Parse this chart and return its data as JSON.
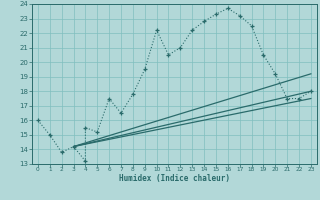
{
  "xlabel": "Humidex (Indice chaleur)",
  "bg_color": "#b2d8d8",
  "grid_color": "#80bfbf",
  "line_color": "#2a6b6b",
  "xlim": [
    -0.5,
    23.5
  ],
  "ylim": [
    13,
    24
  ],
  "xticks": [
    0,
    1,
    2,
    3,
    4,
    5,
    6,
    7,
    8,
    9,
    10,
    11,
    12,
    13,
    14,
    15,
    16,
    17,
    18,
    19,
    20,
    21,
    22,
    23
  ],
  "yticks": [
    13,
    14,
    15,
    16,
    17,
    18,
    19,
    20,
    21,
    22,
    23,
    24
  ],
  "main_series": {
    "x": [
      0,
      1,
      2,
      3,
      4,
      4,
      5,
      6,
      7,
      8,
      9,
      10,
      11,
      12,
      13,
      14,
      15,
      16,
      17,
      18,
      19,
      20,
      21,
      22,
      23
    ],
    "y": [
      16,
      15,
      13.8,
      14.2,
      13.2,
      15.5,
      15.2,
      17.5,
      16.5,
      17.8,
      19.5,
      22.2,
      20.5,
      21.0,
      22.2,
      22.8,
      23.3,
      23.7,
      23.2,
      22.5,
      20.5,
      19.2,
      17.5,
      17.5,
      18.0
    ]
  },
  "trend_lines": [
    {
      "x": [
        3,
        23
      ],
      "y": [
        14.2,
        19.2
      ]
    },
    {
      "x": [
        3,
        23
      ],
      "y": [
        14.2,
        18.0
      ]
    },
    {
      "x": [
        3,
        23
      ],
      "y": [
        14.2,
        17.5
      ]
    }
  ]
}
